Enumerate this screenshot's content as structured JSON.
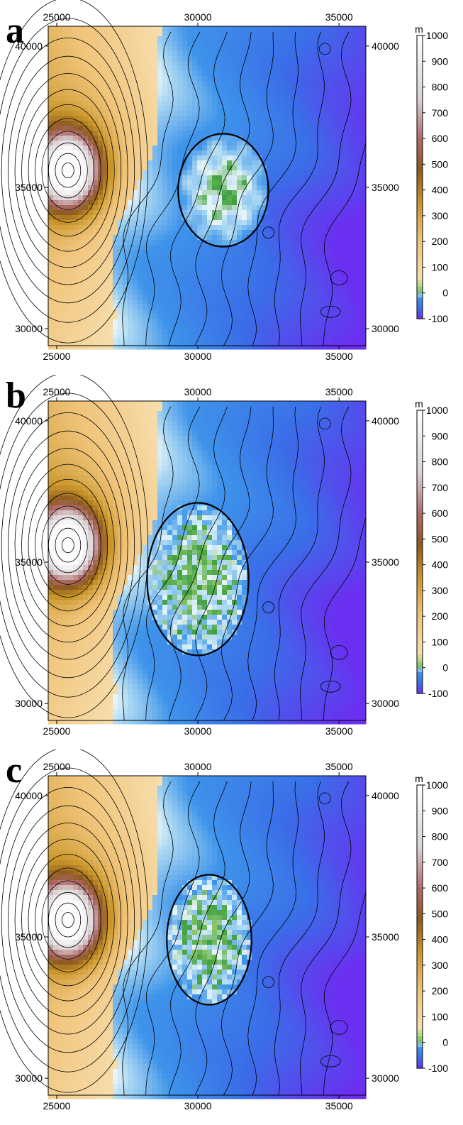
{
  "panels": [
    {
      "letter": "a",
      "slide_cx": 30.9,
      "slide_cy": 34.9,
      "slide_rx": 1.6,
      "slide_ry": 2.0,
      "style": "smooth"
    },
    {
      "letter": "b",
      "slide_cx": 30.0,
      "slide_cy": 34.4,
      "slide_rx": 1.8,
      "slide_ry": 2.7,
      "style": "rough"
    },
    {
      "letter": "c",
      "slide_cx": 30.4,
      "slide_cy": 34.9,
      "slide_rx": 1.5,
      "slide_ry": 2.3,
      "style": "rough"
    }
  ],
  "axes": {
    "x_ticks": [
      "25000",
      "30000",
      "35000"
    ],
    "y_ticks": [
      "40000",
      "35000",
      "30000"
    ]
  },
  "colorbar": {
    "unit": "m",
    "labels": [
      "1000",
      "900",
      "800",
      "700",
      "600",
      "500",
      "400",
      "300",
      "200",
      "100",
      "0",
      "-100"
    ]
  },
  "colors": {
    "deep_sea": "#6633ee",
    "sea": "#2f7fe6",
    "shallow": "#bfe0f5",
    "coast_green": "#2e8b2e",
    "lowland": "#f5d39a",
    "hill": "#c9962a",
    "mountain": "#8a5a1c",
    "peak": "#f4eef0"
  }
}
